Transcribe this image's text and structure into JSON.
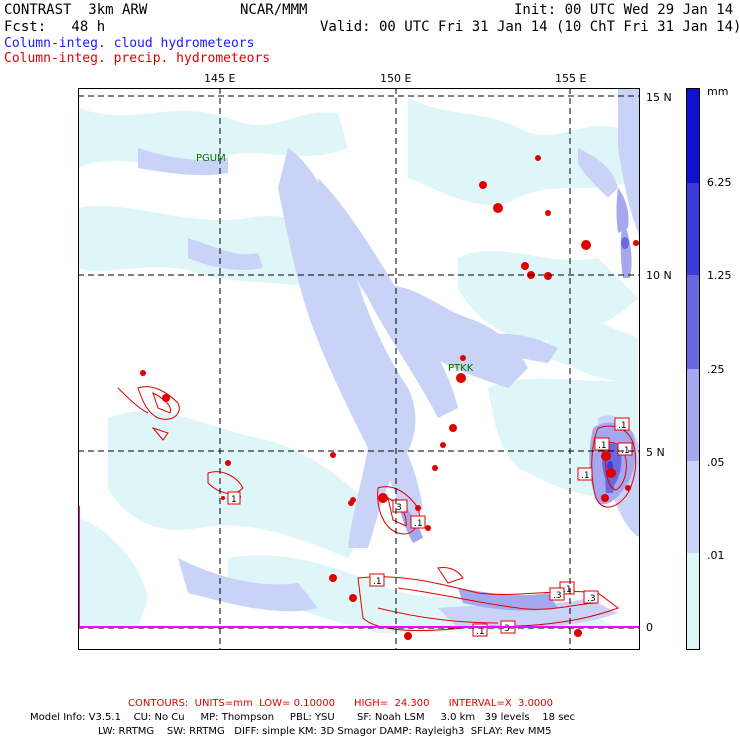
{
  "header": {
    "model": "CONTRAST  3km ARW",
    "org": "NCAR/MMM",
    "init": "Init: 00 UTC Wed 29 Jan 14",
    "fcst": "Fcst:   48 h",
    "valid": "Valid: 00 UTC Fri 31 Jan 14 (10 ChT Fri 31 Jan 14)",
    "field1": "Column-integ. cloud hydrometeors",
    "field2": "Column-integ. precip. hydrometeors"
  },
  "map": {
    "lon_labels": [
      "145 E",
      "150 E",
      "155 E"
    ],
    "lat_labels": [
      "15 N",
      "10 N",
      "5 N",
      "0"
    ],
    "stations": [
      "PGUM",
      "PTKK"
    ],
    "contour_markers": [
      ".1",
      ".1",
      ".1",
      ".1",
      "3",
      ".1",
      ".1",
      ".3",
      ".1",
      "3",
      ".1",
      "1",
      ".3"
    ],
    "colors": {
      "lightest": "#dff6f8",
      "light": "#c8d3f7",
      "mid": "#a6a8ef",
      "strong": "#6a68e0",
      "dark": "#3c3ad8",
      "darkest": "#1010d0",
      "contour": "#e00000",
      "boundary": "#ff00ff"
    }
  },
  "colorbar": {
    "unit": "mm",
    "labels": [
      "6.25",
      "1.25",
      ".25",
      ".05",
      ".01"
    ],
    "colors": [
      "#1010d0",
      "#3c3ad8",
      "#6a68e0",
      "#a6a8ef",
      "#c8d3f7",
      "#dff6f8",
      "#ffffff"
    ]
  },
  "footer": {
    "contours": "CONTOURS:  UNITS=mm  LOW= 0.10000      HIGH=  24.300      INTERVAL=X  3.0000",
    "line1": "Model Info: V3.5.1    CU: No Cu     MP: Thompson     PBL: YSU       SF: Noah LSM     3.0 km   39 levels    18 sec",
    "line2": "LW: RRTMG    SW: RRTMG   DIFF: simple KM: 3D Smagor DAMP: Rayleigh3  SFLAY: Rev MM5"
  }
}
